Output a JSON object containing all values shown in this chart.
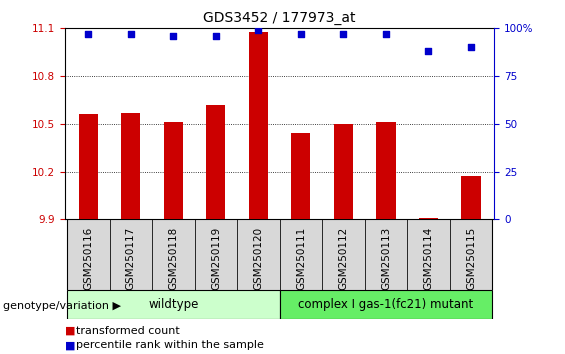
{
  "title": "GDS3452 / 177973_at",
  "samples": [
    "GSM250116",
    "GSM250117",
    "GSM250118",
    "GSM250119",
    "GSM250120",
    "GSM250111",
    "GSM250112",
    "GSM250113",
    "GSM250114",
    "GSM250115"
  ],
  "transformed_counts": [
    10.56,
    10.57,
    10.51,
    10.62,
    11.08,
    10.44,
    10.5,
    10.51,
    9.91,
    10.17
  ],
  "percentile_ranks": [
    97,
    97,
    96,
    96,
    99,
    97,
    97,
    97,
    88,
    90
  ],
  "ylim_left": [
    9.9,
    11.1
  ],
  "ylim_right": [
    0,
    100
  ],
  "yticks_left": [
    9.9,
    10.2,
    10.5,
    10.8,
    11.1
  ],
  "yticks_right": [
    0,
    25,
    50,
    75,
    100
  ],
  "bar_color": "#cc0000",
  "dot_color": "#0000cc",
  "wildtype_count": 5,
  "mutant_count": 5,
  "wildtype_label": "wildtype",
  "mutant_label": "complex I gas-1(fc21) mutant",
  "wildtype_color": "#ccffcc",
  "mutant_color": "#66ee66",
  "group_label": "genotype/variation",
  "legend_bar": "transformed count",
  "legend_dot": "percentile rank within the sample",
  "title_fontsize": 10,
  "tick_fontsize": 7.5,
  "label_fontsize": 8.5,
  "legend_fontsize": 8,
  "bar_width": 0.45,
  "xlim": [
    -0.55,
    9.55
  ]
}
